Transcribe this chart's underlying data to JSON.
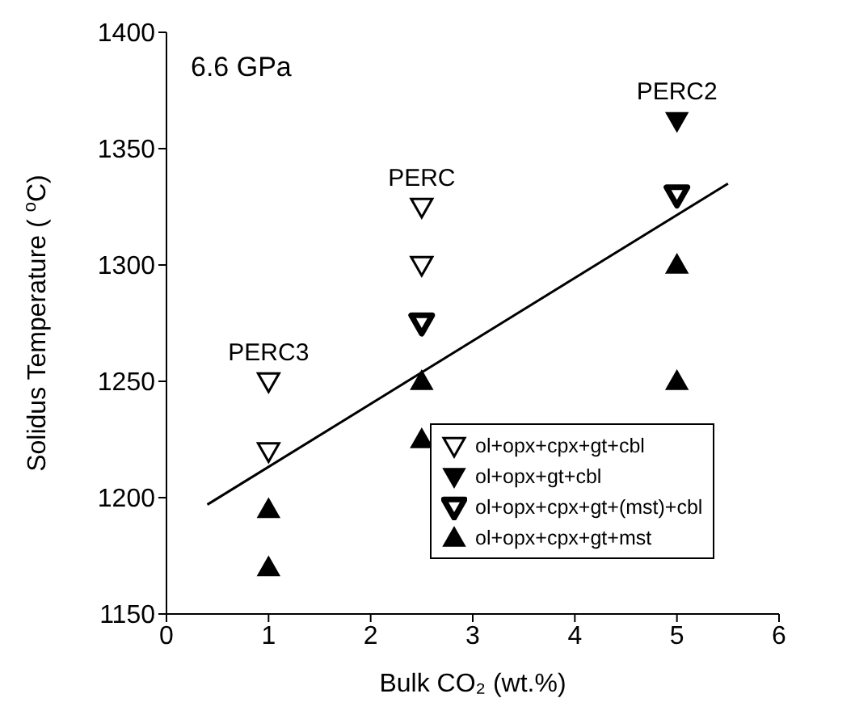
{
  "chart_data": {
    "type": "scatter",
    "xlabel": "Bulk CO₂ (wt.%)",
    "ylabel": "Solidus Temperature ( $^{o}$C)",
    "xlim": [
      0,
      6
    ],
    "xticks": [
      0,
      1,
      2,
      3,
      4,
      5,
      6
    ],
    "ylim": [
      1150,
      1400
    ],
    "yticks": [
      1150,
      1200,
      1250,
      1300,
      1350,
      1400
    ],
    "grid": false,
    "legend": "bottom right",
    "annotations": [
      "6.6 GPa",
      {
        "text": "PERC3",
        "x": 1,
        "y": 1250
      },
      {
        "text": "PERC",
        "x": 2.5,
        "y": 1325
      },
      {
        "text": "PERC2",
        "x": 5,
        "y": 1362
      }
    ],
    "series": [
      {
        "name": "ol+opx+cpx+gt+cbl",
        "color": "#000000",
        "marker": "triangle-down-open",
        "x": [
          1,
          1,
          2.5,
          2.5
        ],
        "values": [
          1250,
          1220,
          1325,
          1300
        ]
      },
      {
        "name": "ol+opx+gt+cbl",
        "color": "#000000",
        "marker": "triangle-down",
        "x": [
          5
        ],
        "values": [
          1362
        ]
      },
      {
        "name": "ol+opx+cpx+gt+(mst)+cbl",
        "color": "#000000",
        "marker": "triangle-down-half",
        "x": [
          2.5,
          5
        ],
        "values": [
          1275,
          1330
        ]
      },
      {
        "name": "ol+opx+cpx+gt+mst",
        "color": "#000000",
        "marker": "triangle",
        "x": [
          1,
          1,
          2.5,
          2.5,
          5,
          5
        ],
        "values": [
          1195,
          1170,
          1250,
          1225,
          1300,
          1250
        ]
      },
      {
        "type": "line",
        "color": "#000000",
        "marker": "none",
        "x": [
          0.4,
          5.5
        ],
        "values": [
          1197,
          1335
        ]
      }
    ]
  }
}
